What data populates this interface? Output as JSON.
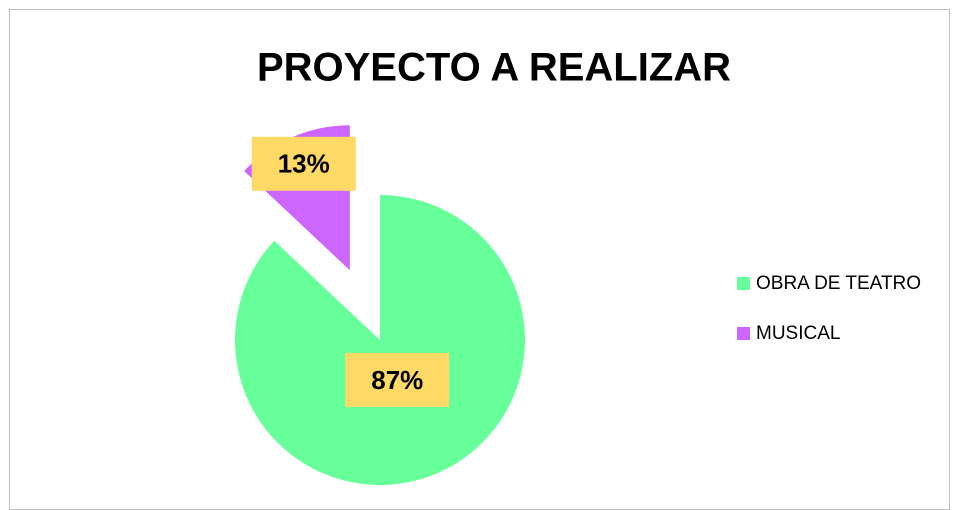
{
  "chart_data": {
    "type": "pie",
    "title": "PROYECTO A REALIZAR",
    "categories": [
      "OBRA DE TEATRO",
      "MUSICAL"
    ],
    "values": [
      87,
      13
    ],
    "value_labels": [
      "87%",
      "13%"
    ],
    "colors": [
      "#66ff99",
      "#cc66ff"
    ],
    "exploded": [
      false,
      true
    ],
    "legend": "right"
  }
}
